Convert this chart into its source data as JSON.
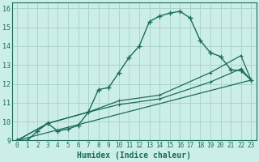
{
  "xlabel": "Humidex (Indice chaleur)",
  "bg_color": "#cceee8",
  "grid_color": "#aad4cc",
  "line_color": "#1a6b5a",
  "spine_color": "#1a6b5a",
  "xlim": [
    -0.5,
    23.5
  ],
  "ylim": [
    9,
    16.3
  ],
  "xticks": [
    0,
    1,
    2,
    3,
    4,
    5,
    6,
    7,
    8,
    9,
    10,
    11,
    12,
    13,
    14,
    15,
    16,
    17,
    18,
    19,
    20,
    21,
    22,
    23
  ],
  "yticks": [
    9,
    10,
    11,
    12,
    13,
    14,
    15,
    16
  ],
  "line1_x": [
    0,
    1,
    2,
    3,
    4,
    5,
    6,
    7,
    8,
    9,
    10,
    11,
    12,
    13,
    14,
    15,
    16,
    17,
    18,
    19,
    20,
    21,
    22,
    23
  ],
  "line1_y": [
    9.0,
    9.0,
    9.5,
    9.9,
    9.5,
    9.6,
    9.8,
    10.5,
    11.7,
    11.8,
    12.6,
    13.4,
    14.0,
    15.3,
    15.6,
    15.75,
    15.85,
    15.5,
    14.3,
    13.65,
    13.45,
    12.75,
    12.7,
    12.2
  ],
  "line2_x": [
    0,
    3,
    7,
    10,
    14,
    19,
    22,
    23
  ],
  "line2_y": [
    9.0,
    9.9,
    10.5,
    11.1,
    11.4,
    12.6,
    13.5,
    12.2
  ],
  "line3_x": [
    0,
    3,
    7,
    10,
    14,
    19,
    22,
    23
  ],
  "line3_y": [
    9.0,
    9.9,
    10.5,
    10.9,
    11.2,
    12.1,
    12.8,
    12.2
  ],
  "line4_x": [
    0,
    23
  ],
  "line4_y": [
    9.0,
    12.2
  ],
  "tick_fontsize": 5.5,
  "xlabel_fontsize": 7.0
}
